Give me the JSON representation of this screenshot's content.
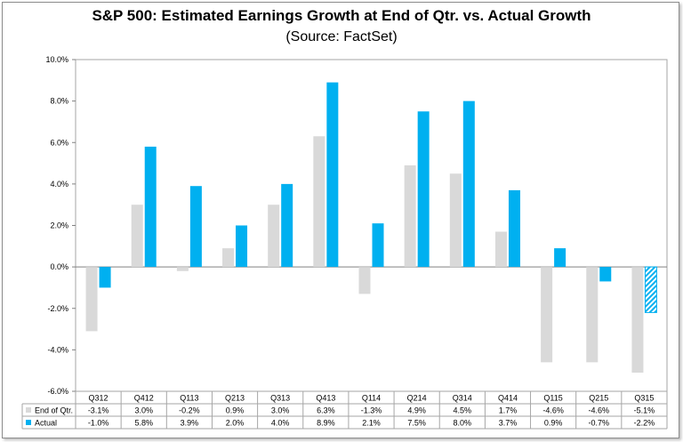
{
  "chart_data": {
    "type": "bar",
    "title": "S&P 500: Estimated Earnings Growth at End of Qtr. vs. Actual Growth",
    "subtitle": "(Source: FactSet)",
    "categories": [
      "Q312",
      "Q412",
      "Q113",
      "Q213",
      "Q313",
      "Q413",
      "Q114",
      "Q214",
      "Q314",
      "Q414",
      "Q115",
      "Q215",
      "Q315"
    ],
    "series": [
      {
        "name": "End of Qtr.",
        "color": "#d9d9d9",
        "values": [
          -3.1,
          3.0,
          -0.2,
          0.9,
          3.0,
          6.3,
          -1.3,
          4.9,
          4.5,
          1.7,
          -4.6,
          -4.6,
          -5.1
        ],
        "labels": [
          "-3.1%",
          "3.0%",
          "-0.2%",
          "0.9%",
          "3.0%",
          "6.3%",
          "-1.3%",
          "4.9%",
          "4.5%",
          "1.7%",
          "-4.6%",
          "-4.6%",
          "-5.1%"
        ]
      },
      {
        "name": "Actual",
        "color": "#00b0f0",
        "values": [
          -1.0,
          5.8,
          3.9,
          2.0,
          4.0,
          8.9,
          2.1,
          7.5,
          8.0,
          3.7,
          0.9,
          -0.7,
          -2.2
        ],
        "labels": [
          "-1.0%",
          "5.8%",
          "3.9%",
          "2.0%",
          "4.0%",
          "8.9%",
          "2.1%",
          "7.5%",
          "8.0%",
          "3.7%",
          "0.9%",
          "-0.7%",
          "-2.2%"
        ],
        "hatched_last": true
      }
    ],
    "ylim": [
      -6.0,
      10.0
    ],
    "yticks": [
      "-6.0%",
      "-4.0%",
      "-2.0%",
      "0.0%",
      "2.0%",
      "4.0%",
      "6.0%",
      "8.0%",
      "10.0%"
    ],
    "ytick_values": [
      -6,
      -4,
      -2,
      0,
      2,
      4,
      6,
      8,
      10
    ],
    "grid": false,
    "legend": "data-table"
  }
}
